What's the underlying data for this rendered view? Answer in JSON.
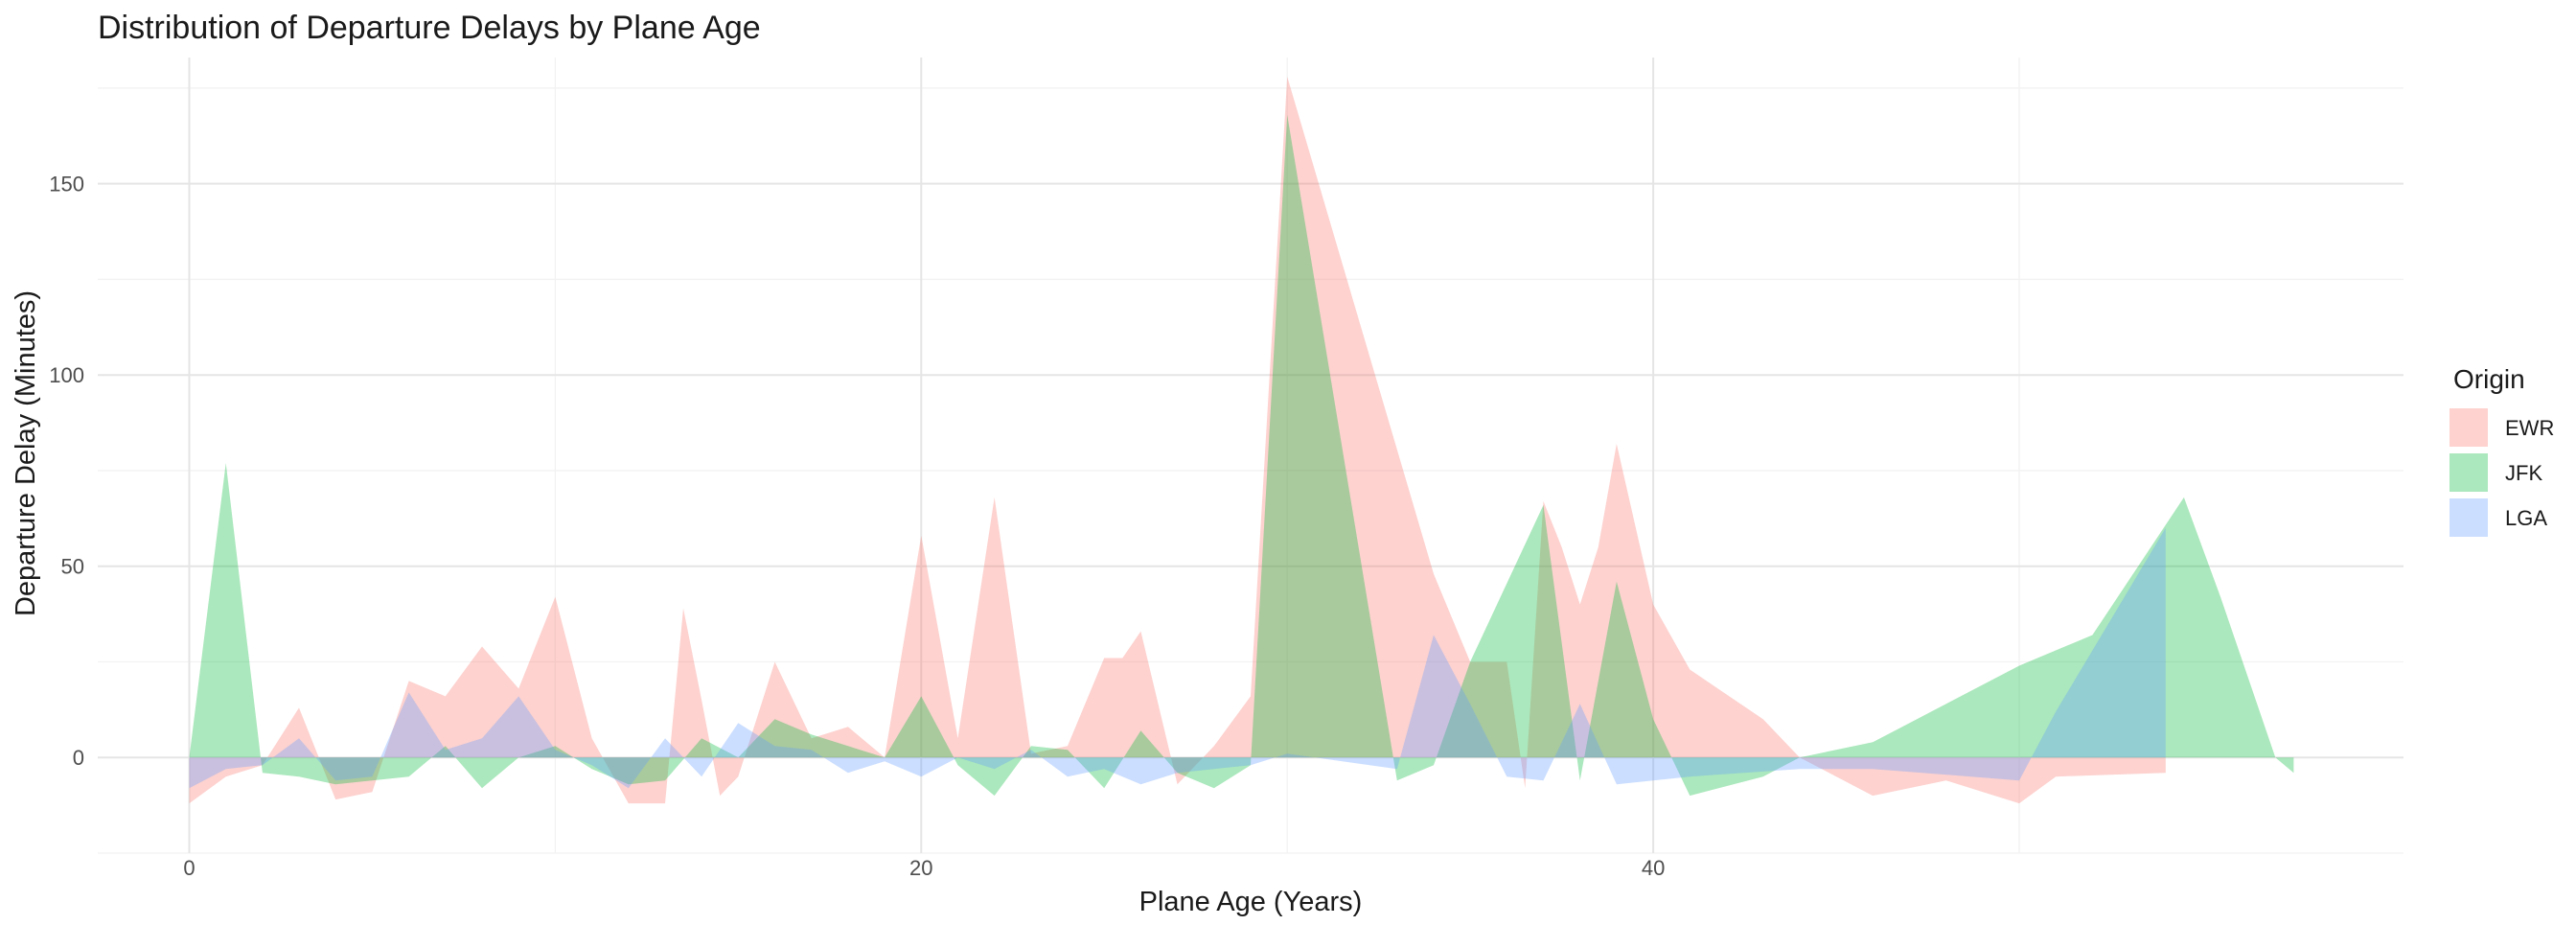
{
  "chart_data": {
    "type": "area",
    "title": "Distribution of Departure Delays by Plane Age",
    "xlabel": "Plane Age (Years)",
    "ylabel": "Departure Delay (Minutes)",
    "xlim": [
      -2.5,
      60.5
    ],
    "ylim": [
      -25,
      183
    ],
    "x_ticks": [
      0,
      20,
      40
    ],
    "y_ticks": [
      0,
      50,
      100,
      150
    ],
    "grid": true,
    "legend": {
      "title": "Origin",
      "position": "right"
    },
    "series": [
      {
        "name": "EWR",
        "color": "#F8766D",
        "x": [
          0,
          1,
          2,
          3,
          4,
          5,
          6,
          7,
          8,
          9,
          10,
          11,
          12,
          13,
          13.5,
          14,
          14.5,
          15,
          16,
          17,
          18,
          19,
          20,
          21,
          22,
          23,
          24,
          25,
          25.5,
          26,
          27,
          28,
          29,
          30,
          34,
          35,
          36,
          36.5,
          37,
          37.5,
          38,
          38.5,
          39,
          40,
          41,
          43,
          44,
          46,
          48,
          50,
          51,
          54
        ],
        "y": [
          -12,
          -5,
          -2,
          13,
          -11,
          -9,
          20,
          16,
          29,
          18,
          42,
          5,
          -12,
          -12,
          39,
          15,
          -10,
          -5,
          25,
          5,
          8,
          0,
          58,
          5,
          68,
          1,
          3,
          26,
          26,
          33,
          -7,
          3,
          16,
          178,
          48,
          25,
          25,
          -8,
          67,
          55,
          40,
          55,
          82,
          40,
          23,
          10,
          0,
          -10,
          -6,
          -12,
          -5,
          -4
        ]
      },
      {
        "name": "JFK",
        "color": "#00BA38",
        "x": [
          0,
          1,
          2,
          3,
          4,
          5,
          6,
          7,
          8,
          9,
          10,
          11,
          12,
          13,
          14,
          15,
          16,
          17,
          18,
          19,
          20,
          21,
          22,
          23,
          24,
          25,
          26,
          27,
          28,
          29,
          30,
          33,
          34,
          35,
          37,
          38,
          39,
          40,
          41,
          43,
          44,
          46,
          50,
          52,
          54.5,
          55.5,
          57,
          57.5
        ],
        "y": [
          0,
          77,
          -4,
          -5,
          -7,
          -6,
          -5,
          3,
          -8,
          0,
          3,
          -3,
          -7,
          -6,
          5,
          0,
          10,
          6,
          3,
          0,
          16,
          -2,
          -10,
          3,
          2,
          -8,
          7,
          -4,
          -8,
          -2,
          168,
          -6,
          -2,
          25,
          66,
          -6,
          46,
          10,
          -10,
          -5,
          0,
          4,
          24,
          32,
          68,
          42,
          0,
          -4
        ]
      },
      {
        "name": "LGA",
        "color": "#619CFF",
        "x": [
          0,
          1,
          2,
          3,
          4,
          5,
          6,
          7,
          8,
          9,
          10,
          11,
          12,
          13,
          14,
          15,
          16,
          17,
          18,
          19,
          20,
          21,
          22,
          23,
          24,
          25,
          26,
          27,
          28,
          29,
          30,
          33,
          34,
          35,
          36,
          37,
          38,
          39,
          40,
          41,
          44,
          46,
          50,
          51,
          54
        ],
        "y": [
          -8,
          -3,
          -2,
          5,
          -6,
          -5,
          17,
          2,
          5,
          16,
          2,
          -2,
          -8,
          5,
          -5,
          9,
          3,
          2,
          -4,
          -1,
          -5,
          0,
          -3,
          2,
          -5,
          -3,
          -7,
          -4,
          -3,
          -2,
          1,
          -3,
          32,
          14,
          -5,
          -6,
          14,
          -7,
          -6,
          -5,
          -3,
          -3,
          -6,
          12,
          60
        ]
      }
    ]
  }
}
